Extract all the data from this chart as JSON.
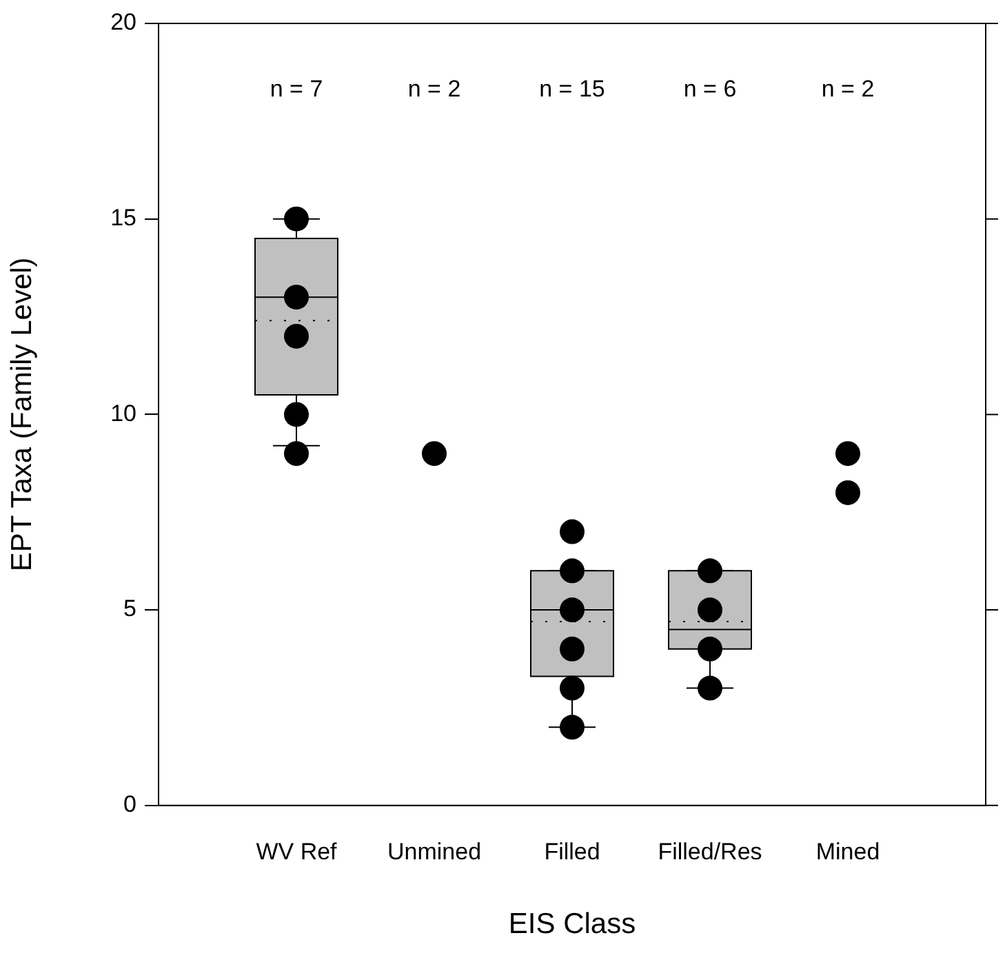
{
  "chart_data": {
    "type": "box",
    "xlabel": "EIS Class",
    "ylabel": "EPT Taxa (Family Level)",
    "categories": [
      "WV Ref",
      "Unmined",
      "Filled",
      "Filled/Res",
      "Mined"
    ],
    "color": "#c0c0c0",
    "boxes": [
      {
        "low": 9.2,
        "q1": 10.5,
        "median": 13,
        "q3": 14.5,
        "high": 15,
        "mean": 12.4
      },
      null,
      {
        "low": 2,
        "q1": 3.3,
        "median": 5,
        "q3": 6,
        "high": 6,
        "mean": 4.7
      },
      {
        "low": 3,
        "q1": 4,
        "median": 4.5,
        "q3": 6,
        "high": 6,
        "mean": 4.7
      },
      null
    ],
    "series": [
      {
        "type": "scatter",
        "color": "#000000",
        "x": [
          "WV Ref",
          "WV Ref",
          "WV Ref",
          "WV Ref",
          "WV Ref",
          "Unmined",
          "Filled",
          "Filled",
          "Filled",
          "Filled",
          "Filled",
          "Filled",
          "Filled/Res",
          "Filled/Res",
          "Filled/Res",
          "Filled/Res",
          "Mined",
          "Mined"
        ],
        "values": [
          15,
          13,
          12,
          10,
          9,
          9,
          7,
          6,
          5,
          4,
          3,
          2,
          6,
          5,
          4,
          3,
          9,
          8
        ]
      }
    ],
    "ylim": [
      0,
      20
    ],
    "yticks": [
      0,
      5,
      10,
      15,
      20
    ],
    "grid": false,
    "legend": false,
    "marker": "circle",
    "annotations": [
      "n = 7",
      "n = 2",
      "n = 15",
      "n = 6",
      "n = 2"
    ]
  }
}
